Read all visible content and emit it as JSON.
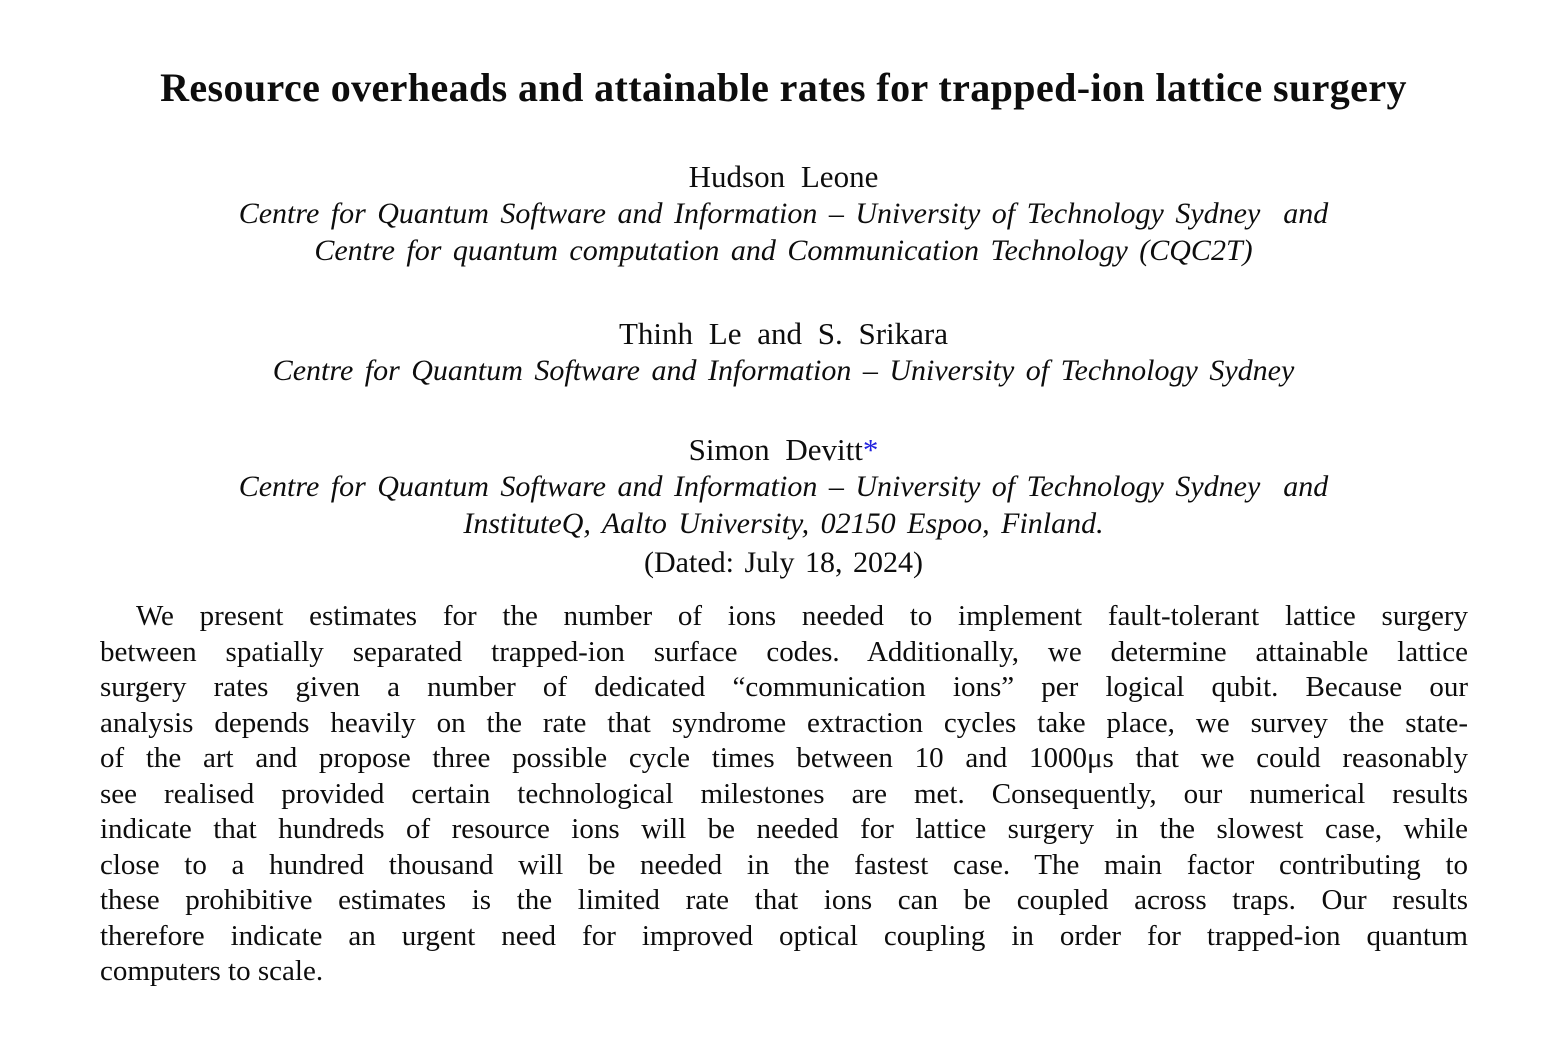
{
  "paper": {
    "title": "Resource overheads and attainable rates for trapped-ion lattice surgery",
    "authors": [
      {
        "name": "Hudson Leone",
        "marker": "",
        "affiliations": [
          "Centre for Quantum Software and Information – University of Technology Sydney  and",
          "Centre for quantum computation and Communication Technology (CQC2T)"
        ]
      },
      {
        "name": "Thinh Le and S. Srikara",
        "marker": "",
        "affiliations": [
          "Centre for Quantum Software and Information – University of Technology Sydney"
        ]
      },
      {
        "name": "Simon Devitt",
        "marker": "*",
        "affiliations": [
          "Centre for Quantum Software and Information – University of Technology Sydney  and",
          "InstituteQ, Aalto University, 02150 Espoo, Finland."
        ]
      }
    ],
    "dated": "(Dated: July 18, 2024)",
    "abstract": {
      "lines": [
        "We present estimates for the number of ions needed to implement fault-tolerant lattice surgery",
        "between spatially separated trapped-ion surface codes. Additionally, we determine attainable lattice",
        "surgery rates given a number of dedicated “communication ions” per logical qubit. Because our",
        "analysis depends heavily on the rate that syndrome extraction cycles take place, we survey the state-",
        "of the art and propose three possible cycle times between 10 and 1000μs that we could reasonably",
        "see realised provided certain technological milestones are met. Consequently, our numerical results",
        "indicate that hundreds of resource ions will be needed for lattice surgery in the slowest case, while",
        "close to a hundred thousand will be needed in the fastest case. The main factor contributing to",
        "these prohibitive estimates is the limited rate that ions can be coupled across traps. Our results",
        "therefore indicate an urgent need for improved optical coupling in order for trapped-ion quantum",
        "computers to scale."
      ]
    },
    "colors": {
      "text": "#0d0d0d",
      "link_blue": "#2121de",
      "background": "#ffffff"
    }
  }
}
